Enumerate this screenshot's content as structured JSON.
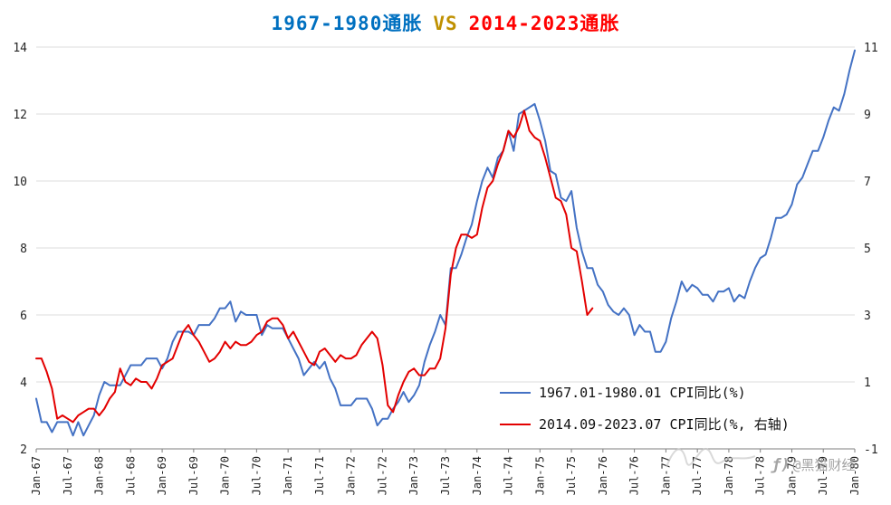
{
  "title": {
    "part1": "1967-1980通胀",
    "vs": "VS",
    "part2": "2014-2023通胀",
    "part1_color": "#0070C0",
    "vs_color": "#BF9000",
    "part2_color": "#FF0000"
  },
  "watermark": {
    "icon": "flame-f-logo",
    "icon_glyph": "ƒ)",
    "text": "@黑猫财经"
  },
  "chart_data": {
    "type": "line",
    "title": "1967-1980通胀 VS 2014-2023通胀",
    "grid": "horizontal",
    "legend_position": "inside-bottom-right",
    "left_axis": {
      "min": 2,
      "max": 14,
      "ticks": [
        2,
        4,
        6,
        8,
        10,
        12,
        14
      ]
    },
    "right_axis": {
      "min": -1,
      "max": 11,
      "ticks": [
        -1,
        1,
        3,
        5,
        7,
        9,
        11
      ]
    },
    "x_total_months": 157,
    "x_tick_interval_months": 6,
    "x_tick_labels": [
      "Jan-67",
      "Jul-67",
      "Jan-68",
      "Jul-68",
      "Jan-69",
      "Jul-69",
      "Jan-70",
      "Jul-70",
      "Jan-71",
      "Jul-71",
      "Jan-72",
      "Jul-72",
      "Jan-73",
      "Jul-73",
      "Jan-74",
      "Jul-74",
      "Jan-75",
      "Jul-75",
      "Jan-76",
      "Jul-76",
      "Jan-77",
      "Jul-77",
      "Jan-78",
      "Jul-78",
      "Jan-79",
      "Jul-79",
      "Jan-80"
    ],
    "series": [
      {
        "name": "1967.01-1980.01 CPI同比(%)",
        "color": "#4472C4",
        "axis": "left",
        "x_start_month": 0,
        "values": [
          3.5,
          2.8,
          2.8,
          2.5,
          2.8,
          2.8,
          2.8,
          2.4,
          2.8,
          2.4,
          2.7,
          3.0,
          3.6,
          4.0,
          3.9,
          3.9,
          3.9,
          4.2,
          4.5,
          4.5,
          4.5,
          4.7,
          4.7,
          4.7,
          4.4,
          4.7,
          5.2,
          5.5,
          5.5,
          5.5,
          5.4,
          5.7,
          5.7,
          5.7,
          5.9,
          6.2,
          6.2,
          6.4,
          5.8,
          6.1,
          6.0,
          6.0,
          6.0,
          5.4,
          5.7,
          5.6,
          5.6,
          5.6,
          5.3,
          5.0,
          4.7,
          4.2,
          4.4,
          4.6,
          4.4,
          4.6,
          4.1,
          3.8,
          3.3,
          3.3,
          3.3,
          3.5,
          3.5,
          3.5,
          3.2,
          2.7,
          2.9,
          2.9,
          3.2,
          3.4,
          3.7,
          3.4,
          3.6,
          3.9,
          4.6,
          5.1,
          5.5,
          6.0,
          5.7,
          7.4,
          7.4,
          7.8,
          8.3,
          8.7,
          9.4,
          10.0,
          10.4,
          10.1,
          10.7,
          10.9,
          11.5,
          10.9,
          12.0,
          12.1,
          12.2,
          12.3,
          11.8,
          11.2,
          10.3,
          10.2,
          9.5,
          9.4,
          9.7,
          8.6,
          7.9,
          7.4,
          7.4,
          6.9,
          6.7,
          6.3,
          6.1,
          6.0,
          6.2,
          6.0,
          5.4,
          5.7,
          5.5,
          5.5,
          4.9,
          4.9,
          5.2,
          5.9,
          6.4,
          7.0,
          6.7,
          6.9,
          6.8,
          6.6,
          6.6,
          6.4,
          6.7,
          6.7,
          6.8,
          6.4,
          6.6,
          6.5,
          7.0,
          7.4,
          7.7,
          7.8,
          8.3,
          8.9,
          8.9,
          9.0,
          9.3,
          9.9,
          10.1,
          10.5,
          10.9,
          10.9,
          11.3,
          11.8,
          12.2,
          12.1,
          12.6,
          13.3,
          13.9
        ]
      },
      {
        "name": "2014.09-2023.07 CPI同比(%, 右轴)",
        "color": "#E30000",
        "axis": "right",
        "x_start_month": 0,
        "values": [
          1.7,
          1.7,
          1.3,
          0.8,
          -0.1,
          0.0,
          -0.1,
          -0.2,
          0.0,
          0.1,
          0.2,
          0.2,
          0.0,
          0.2,
          0.5,
          0.7,
          1.4,
          1.0,
          0.9,
          1.1,
          1.0,
          1.0,
          0.8,
          1.1,
          1.5,
          1.6,
          1.7,
          2.1,
          2.5,
          2.7,
          2.4,
          2.2,
          1.9,
          1.6,
          1.7,
          1.9,
          2.2,
          2.0,
          2.2,
          2.1,
          2.1,
          2.2,
          2.4,
          2.5,
          2.8,
          2.9,
          2.9,
          2.7,
          2.3,
          2.5,
          2.2,
          1.9,
          1.6,
          1.5,
          1.9,
          2.0,
          1.8,
          1.6,
          1.8,
          1.7,
          1.7,
          1.8,
          2.1,
          2.3,
          2.5,
          2.3,
          1.5,
          0.3,
          0.1,
          0.6,
          1.0,
          1.3,
          1.4,
          1.2,
          1.2,
          1.4,
          1.4,
          1.7,
          2.6,
          4.2,
          5.0,
          5.4,
          5.4,
          5.3,
          5.4,
          6.2,
          6.8,
          7.0,
          7.5,
          7.9,
          8.5,
          8.3,
          8.6,
          9.1,
          8.5,
          8.3,
          8.2,
          7.7,
          7.1,
          6.5,
          6.4,
          6.0,
          5.0,
          4.9,
          4.0,
          3.0,
          3.2
        ]
      }
    ]
  }
}
